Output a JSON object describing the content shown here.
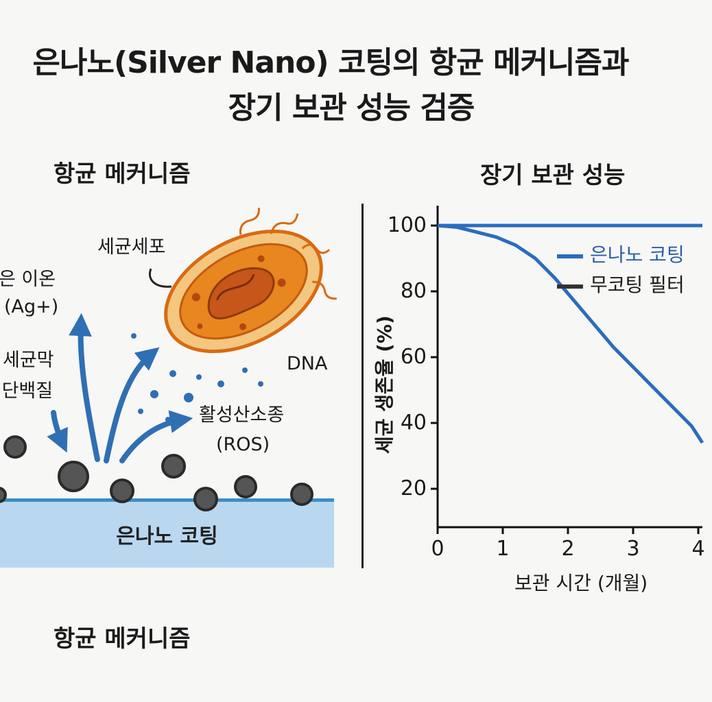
{
  "title": {
    "line1": "은나노(Silver Nano) 코팅의 항균 메커니즘과",
    "line2": "장기 보관 성능 검증"
  },
  "mechanism": {
    "section_title": "항균 메커니즘",
    "bottom_title": "항균 메커니즘",
    "labels": {
      "bacteria": "세균세포",
      "ion_line1": "은 이온",
      "ion_line2": "(Ag+)",
      "membrane_line1": "세균막",
      "membrane_line2": "·단백질",
      "dna": "DNA",
      "ros_line1": "활성산소종",
      "ros_line2": "(ROS)",
      "coating": "은나노 코팅"
    },
    "colors": {
      "arrow": "#2f6fb3",
      "coating_fill": "#b9d8f0",
      "coating_edge": "#3e8ec4",
      "particle": "#555555",
      "cell_outer": "#f4c27a",
      "cell_inner": "#e2761b"
    }
  },
  "storage": {
    "section_title": "장기 보관 성능",
    "chart_data": {
      "type": "line",
      "x_ticks": [
        "0",
        "1",
        "2",
        "3",
        "4"
      ],
      "y_ticks": [
        "20",
        "40",
        "60",
        "80",
        "100"
      ],
      "xlim": [
        0,
        4.1
      ],
      "ylim": [
        12,
        104
      ],
      "xlabel": "보관 시간 (개월)",
      "ylabel": "세균 생존율 (%)",
      "grid": false,
      "legend_position": "top-right",
      "series": [
        {
          "name": "은나노 코팅",
          "color": "#2a6cc0",
          "x": [
            4.1
          ],
          "y": [
            100
          ]
        },
        {
          "name": "무코팅 필터",
          "color": "#2a6cc0",
          "x": [
            0,
            0.3,
            0.6,
            0.9,
            1.2,
            1.5,
            1.8,
            2.1,
            2.4,
            2.7,
            3.0,
            3.3,
            3.6,
            3.9,
            4.1
          ],
          "y": [
            100,
            99.5,
            98,
            96.5,
            94,
            90,
            84,
            77,
            70,
            63,
            57,
            51,
            45,
            39,
            34
          ]
        }
      ],
      "flat_series_x": [
        0,
        4.1
      ],
      "flat_series_y": [
        100,
        100
      ]
    }
  }
}
